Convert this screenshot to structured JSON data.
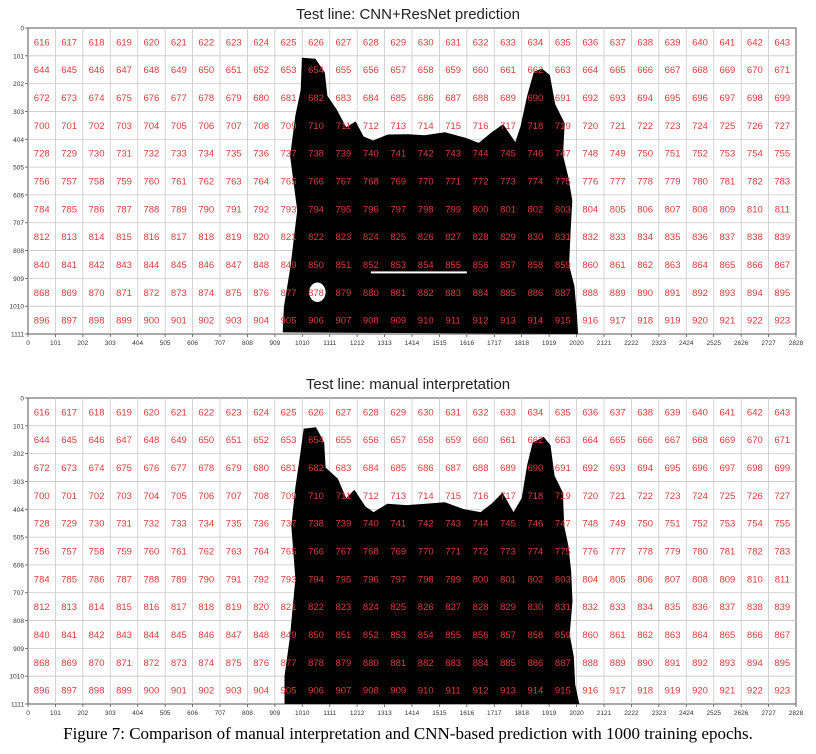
{
  "figure": {
    "caption": "Figure 7: Comparison of manual interpretation and CNN-based prediction with 1000 training epochs.",
    "colors": {
      "cell_label": "#e03a3a",
      "mask": "#000000",
      "grid": "#c8c8c8",
      "axis_text": "#333333"
    },
    "grid": {
      "columns": 28,
      "rows": 11,
      "first_cell_label": 616,
      "last_cell_label": 923
    },
    "x_tick_labels": [
      "0",
      "101",
      "202",
      "303",
      "404",
      "505",
      "606",
      "707",
      "808",
      "909",
      "1010",
      "1111",
      "1212",
      "1313",
      "1414",
      "1515",
      "1616",
      "1717",
      "1818",
      "1919",
      "2020",
      "2121",
      "2222",
      "2323",
      "2424",
      "2525",
      "2626",
      "2727",
      "2828"
    ],
    "y_tick_labels": [
      "0",
      "101",
      "202",
      "303",
      "404",
      "505",
      "606",
      "707",
      "808",
      "909",
      "1010",
      "1111"
    ],
    "panels": [
      {
        "title": "Test line: CNN+ResNet prediction"
      },
      {
        "title": "Test line: manual interpretation"
      }
    ]
  }
}
